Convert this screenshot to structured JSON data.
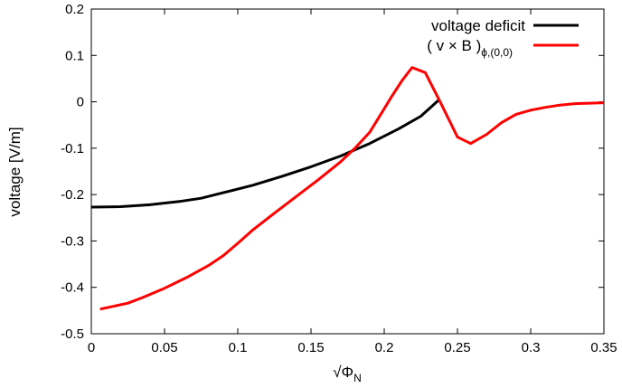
{
  "chart_data": {
    "type": "line",
    "title": "",
    "xlabel": "√Φ",
    "xlabel_sub": "N",
    "ylabel": "voltage [V/m]",
    "xlim": [
      0,
      0.35
    ],
    "ylim": [
      -0.5,
      0.2
    ],
    "x_ticks": [
      0,
      0.05,
      0.1,
      0.15,
      0.2,
      0.25,
      0.3,
      0.35
    ],
    "x_tick_labels": [
      "0",
      "0.05",
      "0.1",
      "0.15",
      "0.2",
      "0.25",
      "0.3",
      "0.35"
    ],
    "y_ticks": [
      -0.5,
      -0.4,
      -0.3,
      -0.2,
      -0.1,
      0,
      0.1,
      0.2
    ],
    "y_tick_labels": [
      "-0.5",
      "-0.4",
      "-0.3",
      "-0.2",
      "-0.1",
      "0",
      "0.1",
      "0.2"
    ],
    "grid": false,
    "legend_position": "top-right",
    "series": [
      {
        "name": "voltage deficit",
        "color": "#000000",
        "points": [
          [
            0.0,
            -0.227
          ],
          [
            0.02,
            -0.226
          ],
          [
            0.04,
            -0.222
          ],
          [
            0.06,
            -0.215
          ],
          [
            0.075,
            -0.208
          ],
          [
            0.09,
            -0.196
          ],
          [
            0.11,
            -0.18
          ],
          [
            0.13,
            -0.161
          ],
          [
            0.15,
            -0.14
          ],
          [
            0.17,
            -0.117
          ],
          [
            0.19,
            -0.09
          ],
          [
            0.21,
            -0.058
          ],
          [
            0.225,
            -0.031
          ],
          [
            0.237,
            0.003
          ]
        ]
      },
      {
        "name_main": "( v × B )",
        "name_sub": "ϕ,(0,0)",
        "color": "#ff0000",
        "points": [
          [
            0.006,
            -0.447
          ],
          [
            0.015,
            -0.441
          ],
          [
            0.025,
            -0.434
          ],
          [
            0.035,
            -0.422
          ],
          [
            0.05,
            -0.402
          ],
          [
            0.065,
            -0.379
          ],
          [
            0.08,
            -0.353
          ],
          [
            0.09,
            -0.332
          ],
          [
            0.1,
            -0.305
          ],
          [
            0.11,
            -0.277
          ],
          [
            0.125,
            -0.24
          ],
          [
            0.14,
            -0.204
          ],
          [
            0.155,
            -0.168
          ],
          [
            0.17,
            -0.13
          ],
          [
            0.18,
            -0.1
          ],
          [
            0.19,
            -0.066
          ],
          [
            0.198,
            -0.025
          ],
          [
            0.205,
            0.011
          ],
          [
            0.212,
            0.045
          ],
          [
            0.219,
            0.074
          ],
          [
            0.228,
            0.063
          ],
          [
            0.238,
            0.001
          ],
          [
            0.25,
            -0.076
          ],
          [
            0.259,
            -0.09
          ],
          [
            0.27,
            -0.07
          ],
          [
            0.28,
            -0.045
          ],
          [
            0.29,
            -0.027
          ],
          [
            0.3,
            -0.018
          ],
          [
            0.31,
            -0.012
          ],
          [
            0.32,
            -0.007
          ],
          [
            0.33,
            -0.004
          ],
          [
            0.35,
            -0.002
          ]
        ]
      }
    ]
  }
}
